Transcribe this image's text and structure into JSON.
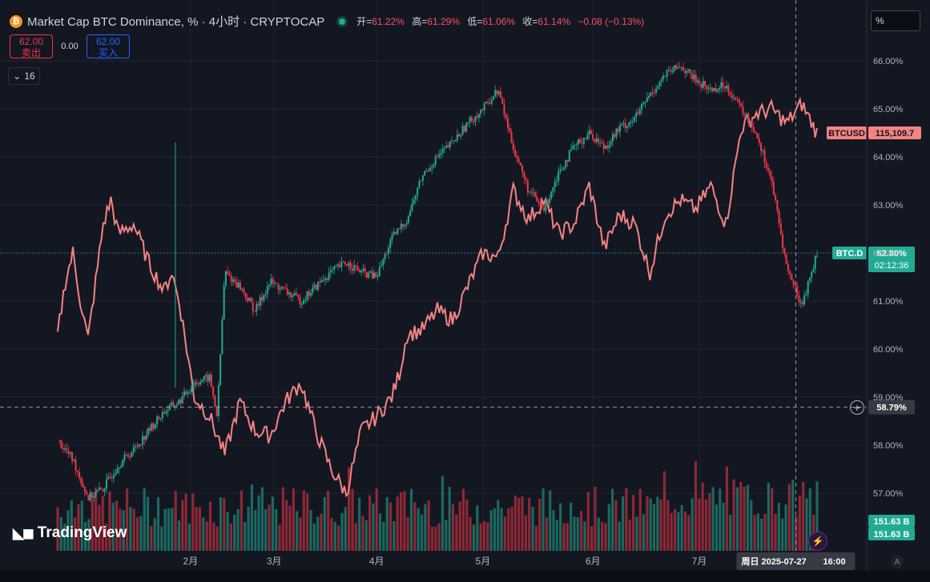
{
  "header": {
    "badge": "₿",
    "title": "Market Cap BTC Dominance, % · 4小时 · CRYPTOCAP",
    "ohlc": [
      {
        "label": "开=",
        "value": "61.22%"
      },
      {
        "label": "高=",
        "value": "61.29%"
      },
      {
        "label": "低=",
        "value": "61.06%"
      },
      {
        "label": "收=",
        "value": "61.14%"
      }
    ],
    "change": "−0.08 (−0.13%)"
  },
  "trade": {
    "sell_price": "62.00",
    "sell_label": "卖出",
    "spread": "0.00",
    "buy_price": "62.00",
    "buy_label": "买入"
  },
  "interval_count": "16",
  "scale_mode": "%",
  "logo": "TradingView",
  "auto_button": "A",
  "colors": {
    "up": "#22ab94",
    "down": "#f23645",
    "btcusd_line": "#f48382",
    "background": "#131722",
    "text": "#b2b5be"
  },
  "chart_data": {
    "type": "line",
    "title": "Market Cap BTC Dominance, % · 4小时 · CRYPTOCAP",
    "x_ticks": [
      "2月",
      "3月",
      "4月",
      "5月",
      "6月",
      "7月"
    ],
    "y_ticks": [
      "66.00%",
      "65.00%",
      "64.00%",
      "63.00%",
      "62.00%",
      "61.00%",
      "60.00%",
      "59.00%",
      "58.00%",
      "57.00%"
    ],
    "ylim": [
      56.5,
      66.3
    ],
    "grid": true,
    "crosshair": {
      "time": "周日 2025-07-27",
      "time2": "16:00",
      "price": "58.79%"
    },
    "series": [
      {
        "name": "BTC.D",
        "style": "candles",
        "last_value": "62.00%",
        "countdown": "02:12:36",
        "x": [
          0,
          2,
          4,
          6,
          8,
          10,
          12,
          14,
          16,
          18,
          20,
          21,
          22,
          24,
          26,
          28,
          30,
          32,
          34,
          36,
          38,
          40,
          42,
          44,
          46,
          48,
          50,
          52,
          54,
          56,
          58,
          60,
          62,
          64,
          66,
          68,
          70,
          72,
          74,
          76,
          78,
          80,
          82,
          84,
          86,
          88,
          90,
          92,
          94,
          96,
          98,
          100
        ],
        "values": [
          58.1,
          57.7,
          56.9,
          57.1,
          57.6,
          57.9,
          58.3,
          58.7,
          58.9,
          59.3,
          59.4,
          58.6,
          61.6,
          61.3,
          60.8,
          61.4,
          61.2,
          61.0,
          61.3,
          61.6,
          61.8,
          61.6,
          61.5,
          62.3,
          62.7,
          63.6,
          64.0,
          64.3,
          64.7,
          65.0,
          65.4,
          64.2,
          63.3,
          62.9,
          63.7,
          64.2,
          64.5,
          64.2,
          64.6,
          64.8,
          65.3,
          65.7,
          65.9,
          65.6,
          65.4,
          65.5,
          65.0,
          64.5,
          63.5,
          61.7,
          60.9,
          62.0
        ]
      },
      {
        "name": "BTCUSD",
        "style": "line",
        "last_value": "115,109.7",
        "x": [
          0,
          1,
          2,
          3,
          4,
          5,
          6,
          7,
          8,
          10,
          12,
          14,
          15,
          16,
          18,
          20,
          22,
          24,
          26,
          28,
          30,
          32,
          34,
          36,
          38,
          40,
          42,
          44,
          45,
          46,
          48,
          50,
          52,
          54,
          56,
          58,
          60,
          62,
          64,
          66,
          68,
          70,
          72,
          74,
          76,
          78,
          80,
          82,
          84,
          86,
          88,
          90,
          92,
          94,
          96,
          98,
          100
        ],
        "values": [
          60.3,
          61.4,
          62.0,
          61.0,
          60.2,
          61.4,
          62.6,
          63.1,
          62.4,
          62.6,
          61.8,
          61.2,
          61.6,
          61.0,
          59.0,
          58.6,
          57.8,
          58.9,
          58.3,
          58.2,
          58.9,
          59.3,
          58.3,
          57.5,
          57.0,
          58.3,
          58.6,
          59.0,
          59.5,
          60.3,
          60.4,
          60.8,
          60.6,
          61.3,
          62.0,
          61.9,
          63.3,
          62.7,
          63.1,
          62.4,
          62.6,
          63.4,
          62.1,
          62.8,
          62.6,
          61.6,
          62.8,
          63.1,
          62.9,
          63.4,
          62.6,
          64.6,
          64.9,
          65.0,
          64.7,
          65.1,
          64.5
        ]
      }
    ],
    "volume_labels": [
      "151.63 B",
      "151.63 B"
    ]
  }
}
